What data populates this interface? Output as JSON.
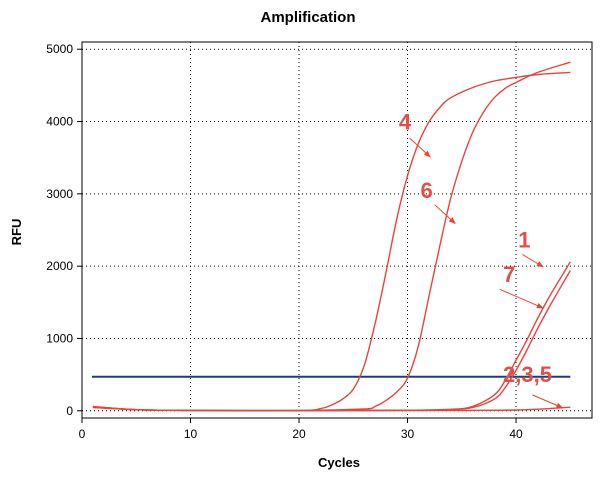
{
  "chart_data": {
    "type": "line",
    "title": "Amplification",
    "xlabel": "Cycles",
    "ylabel": "RFU",
    "xlim": [
      0,
      47
    ],
    "ylim": [
      -100,
      5100
    ],
    "xticks": [
      0,
      10,
      20,
      30,
      40
    ],
    "yticks": [
      0,
      1000,
      2000,
      3000,
      4000,
      5000
    ],
    "grid": true,
    "threshold": {
      "value": 470,
      "color": "#1f3d7a"
    },
    "curve_color": "#e8443a",
    "series": [
      {
        "name": "1",
        "x": [
          1,
          5,
          10,
          20,
          30,
          34,
          36,
          38,
          39,
          40,
          41,
          42,
          43,
          44,
          45
        ],
        "y": [
          55,
          15,
          5,
          3,
          8,
          20,
          60,
          220,
          420,
          700,
          980,
          1280,
          1560,
          1810,
          2060
        ]
      },
      {
        "name": "7",
        "x": [
          1,
          5,
          10,
          20,
          30,
          34,
          36,
          38,
          39,
          40,
          41,
          42,
          43,
          44,
          45
        ],
        "y": [
          50,
          15,
          5,
          3,
          6,
          15,
          45,
          160,
          320,
          560,
          840,
          1140,
          1420,
          1680,
          1940
        ]
      },
      {
        "name": "4",
        "x": [
          1,
          5,
          10,
          20,
          22,
          23,
          24,
          25,
          26,
          27,
          28,
          29,
          30,
          31,
          32,
          33,
          34,
          36,
          38,
          40,
          42,
          45
        ],
        "y": [
          60,
          15,
          5,
          3,
          30,
          80,
          160,
          300,
          620,
          1200,
          1900,
          2650,
          3250,
          3700,
          4000,
          4200,
          4330,
          4470,
          4560,
          4610,
          4650,
          4680
        ]
      },
      {
        "name": "6",
        "x": [
          1,
          5,
          10,
          20,
          26,
          27,
          28,
          29,
          30,
          31,
          32,
          33,
          34,
          35,
          36,
          37,
          38,
          39,
          40,
          42,
          45
        ],
        "y": [
          55,
          15,
          5,
          3,
          25,
          60,
          140,
          260,
          450,
          900,
          1600,
          2300,
          2950,
          3450,
          3850,
          4130,
          4330,
          4460,
          4540,
          4680,
          4820
        ]
      },
      {
        "name": "2,3,5",
        "x": [
          1,
          5,
          10,
          20,
          30,
          35,
          40,
          42,
          44,
          45
        ],
        "y": [
          45,
          15,
          5,
          2,
          3,
          5,
          10,
          22,
          40,
          50
        ]
      }
    ],
    "annotations": [
      {
        "text": "4",
        "label_x": 29.2,
        "label_y": 3890,
        "arrow_from": [
          30.2,
          3770
        ],
        "arrow_to": [
          32.1,
          3510
        ]
      },
      {
        "text": "6",
        "label_x": 31.2,
        "label_y": 2940,
        "arrow_from": [
          32.5,
          2850
        ],
        "arrow_to": [
          34.4,
          2590
        ]
      },
      {
        "text": "1",
        "label_x": 40.2,
        "label_y": 2260,
        "arrow_from": [
          40.6,
          2160
        ],
        "arrow_to": [
          42.5,
          1990
        ]
      },
      {
        "text": "7",
        "label_x": 38.8,
        "label_y": 1780,
        "arrow_from": [
          38.5,
          1680
        ],
        "arrow_to": [
          42.5,
          1420
        ]
      },
      {
        "text": "2,3,5",
        "label_x": 38.8,
        "label_y": 400,
        "arrow_from": [
          41.5,
          220
        ],
        "arrow_to": [
          44.3,
          40
        ]
      }
    ]
  }
}
